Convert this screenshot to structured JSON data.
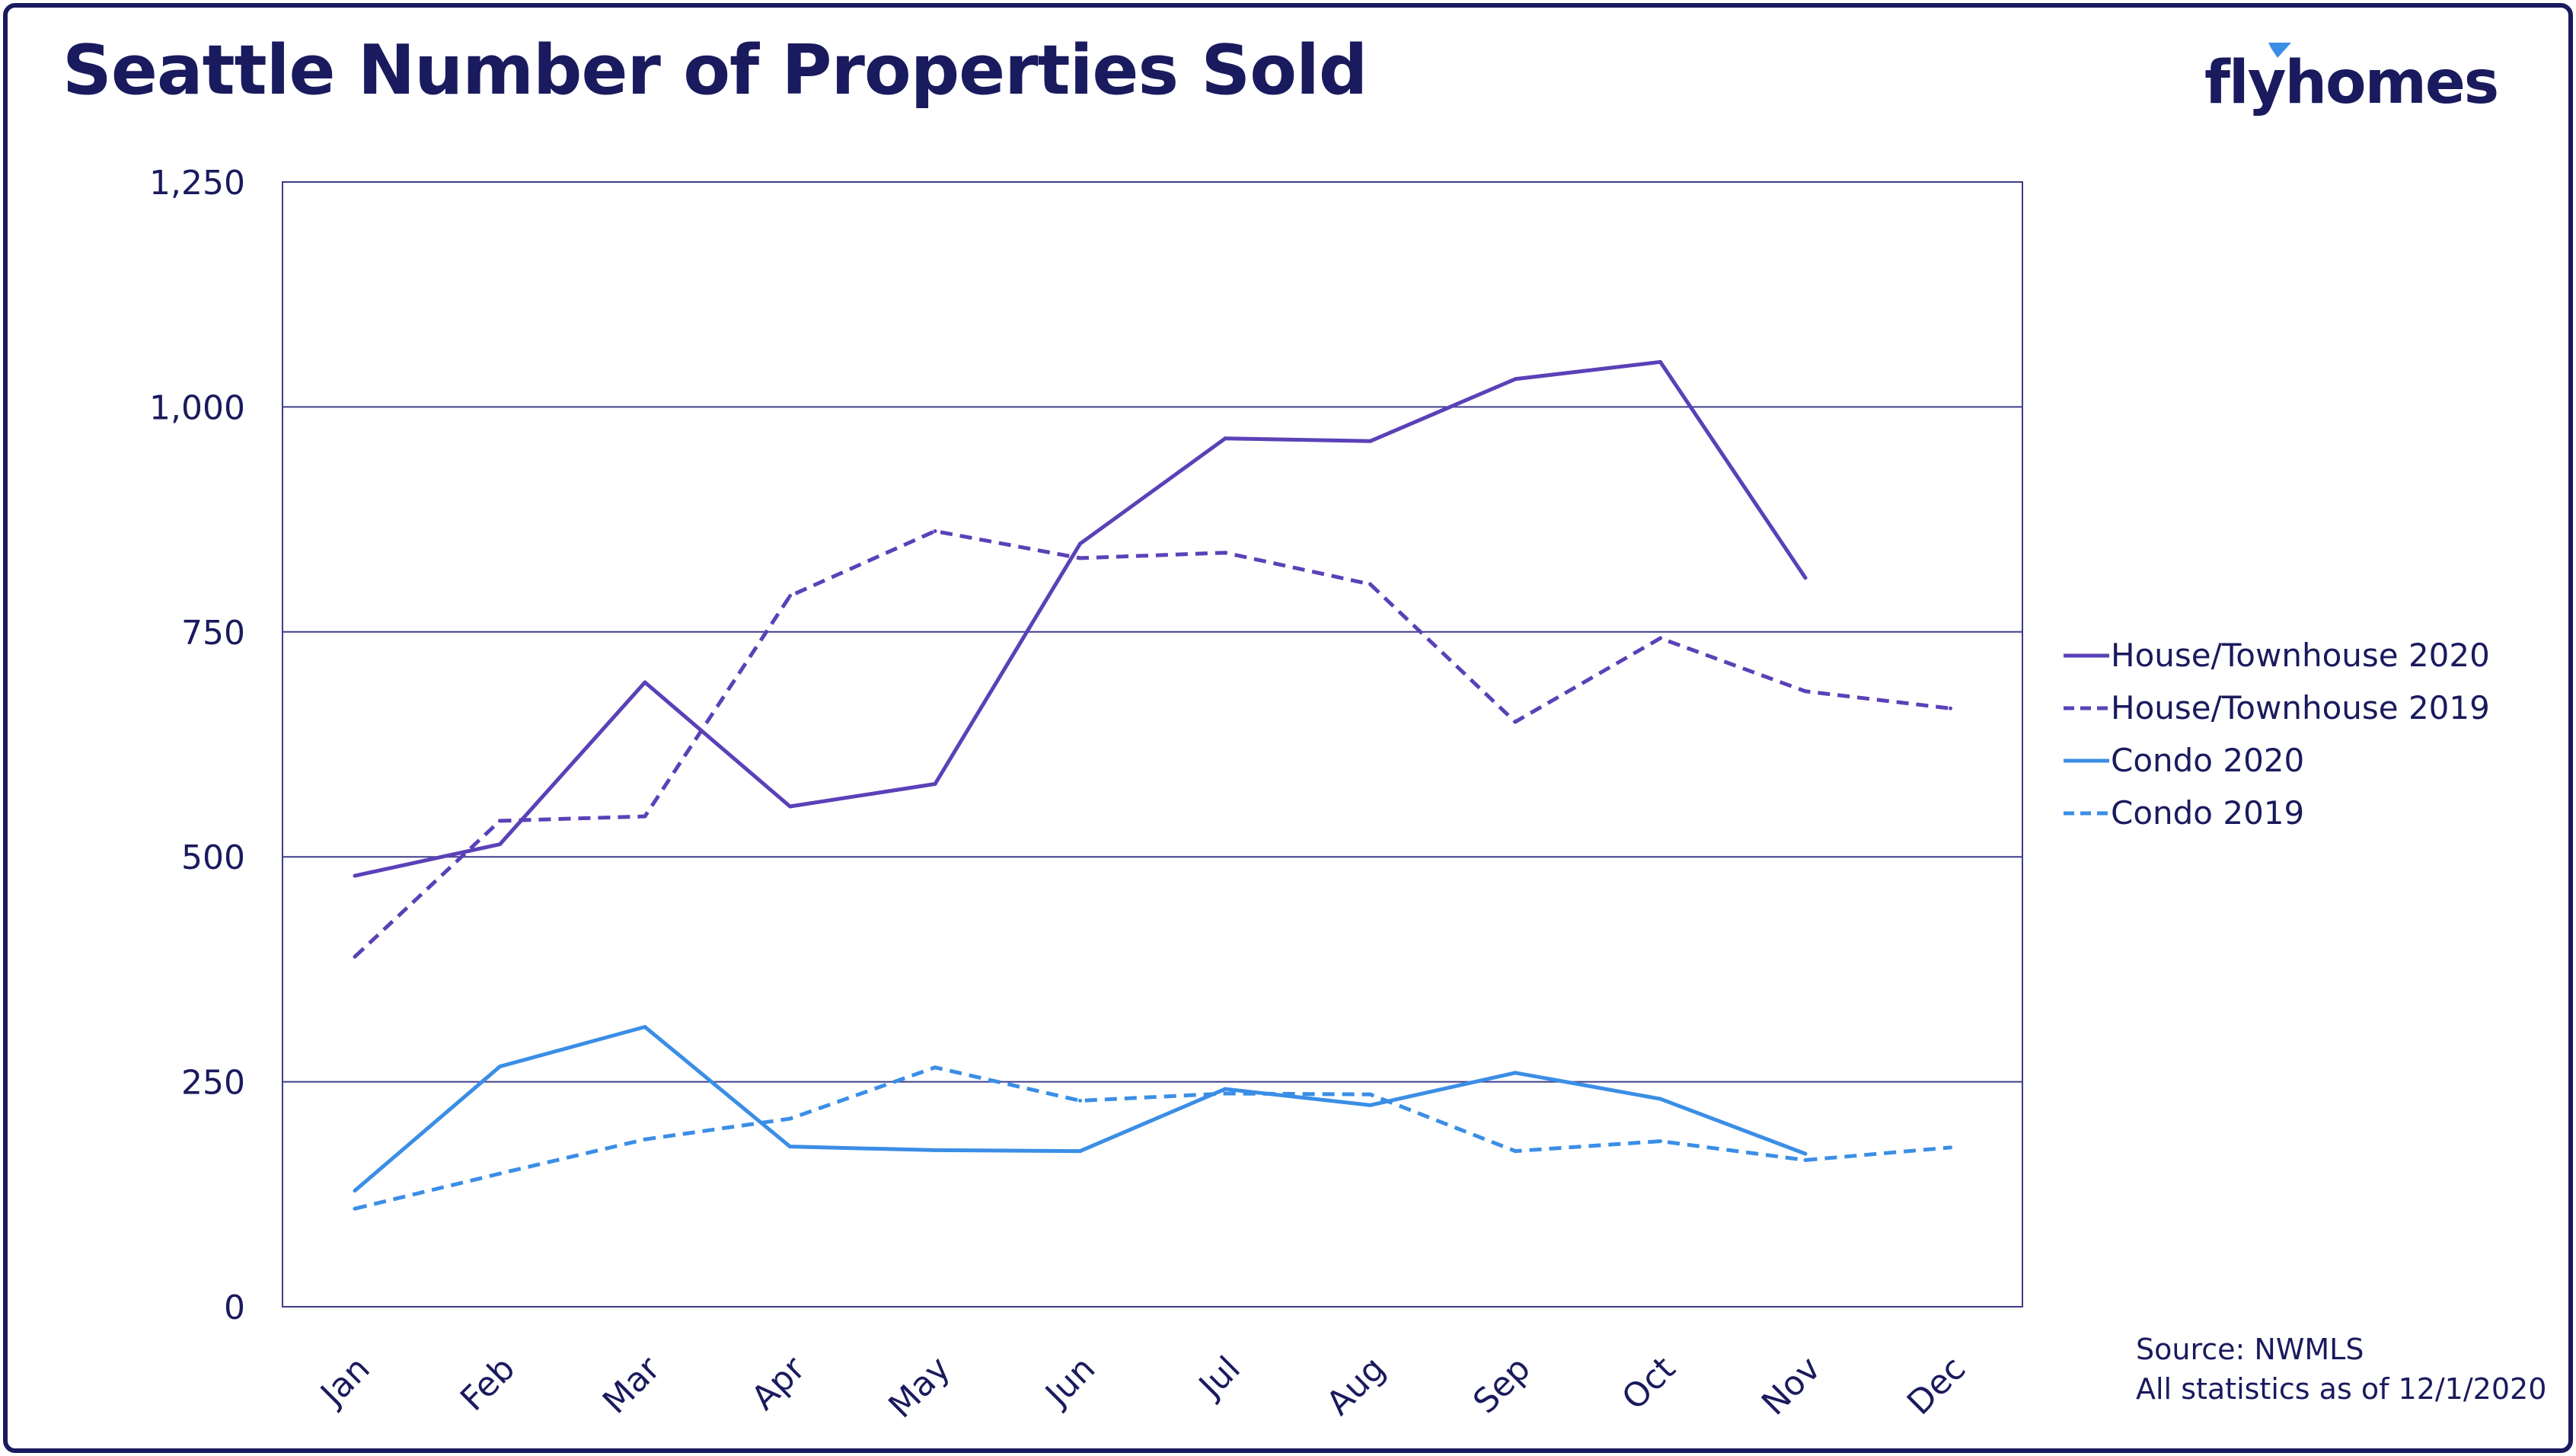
{
  "header": {
    "title": "Seattle Number of Properties Sold",
    "logo_text": "flyhomes"
  },
  "footer": {
    "source": "Source: NWMLS",
    "as_of": "All statistics as of 12/1/2020"
  },
  "colors": {
    "navy": "#1a1a5e",
    "purple": "#5a41b8",
    "blue": "#3b8ee6",
    "grid": "#3d3d8a"
  },
  "chart_data": {
    "type": "line",
    "title": "Seattle Number of Properties Sold",
    "xlabel": "",
    "ylabel": "",
    "categories": [
      "Jan",
      "Feb",
      "Mar",
      "Apr",
      "May",
      "Jun",
      "Jul",
      "Aug",
      "Sep",
      "Oct",
      "Nov",
      "Dec"
    ],
    "ylim": [
      0,
      1250
    ],
    "yticks": [
      0,
      250,
      500,
      750,
      1000,
      1250
    ],
    "ytick_labels": [
      "0",
      "250",
      "500",
      "750",
      "1,000",
      "1,250"
    ],
    "grid": true,
    "legend_position": "right",
    "series": [
      {
        "name": "House/Townhouse 2020",
        "color": "#5a41b8",
        "dash": "solid",
        "values": [
          479,
          514,
          694,
          556,
          581,
          848,
          965,
          962,
          1031,
          1050,
          810,
          null
        ]
      },
      {
        "name": "House/Townhouse 2019",
        "color": "#5a41b8",
        "dash": "dashed",
        "values": [
          389,
          540,
          545,
          790,
          862,
          832,
          838,
          803,
          650,
          743,
          684,
          665
        ]
      },
      {
        "name": "Condo 2020",
        "color": "#3b8ee6",
        "dash": "solid",
        "values": [
          129,
          267,
          311,
          178,
          174,
          173,
          242,
          224,
          260,
          231,
          170,
          null
        ]
      },
      {
        "name": "Condo 2019",
        "color": "#3b8ee6",
        "dash": "dashed",
        "values": [
          109,
          148,
          186,
          209,
          266,
          229,
          237,
          236,
          173,
          184,
          163,
          177
        ]
      }
    ]
  }
}
